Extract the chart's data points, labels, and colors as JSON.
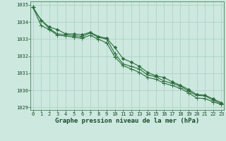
{
  "title": "Graphe pression niveau de la mer (hPa)",
  "bg_color": "#cce8df",
  "grid_color": "#aacfc4",
  "line_color": "#2d6e3e",
  "series1": [
    [
      0,
      1034.85
    ],
    [
      1,
      1034.1
    ],
    [
      2,
      1033.7
    ],
    [
      3,
      1033.55
    ],
    [
      4,
      1033.3
    ],
    [
      5,
      1033.3
    ],
    [
      6,
      1033.25
    ],
    [
      7,
      1033.4
    ],
    [
      8,
      1033.15
    ],
    [
      9,
      1033.05
    ],
    [
      10,
      1032.5
    ],
    [
      11,
      1031.85
    ],
    [
      12,
      1031.65
    ],
    [
      13,
      1031.4
    ],
    [
      14,
      1031.05
    ],
    [
      15,
      1030.85
    ],
    [
      16,
      1030.75
    ],
    [
      17,
      1030.5
    ],
    [
      18,
      1030.3
    ],
    [
      19,
      1030.05
    ],
    [
      20,
      1029.75
    ],
    [
      21,
      1029.72
    ],
    [
      22,
      1029.5
    ],
    [
      23,
      1029.28
    ]
  ],
  "series2": [
    [
      0,
      1034.85
    ],
    [
      1,
      1034.1
    ],
    [
      2,
      1033.6
    ],
    [
      3,
      1033.3
    ],
    [
      4,
      1033.25
    ],
    [
      5,
      1033.2
    ],
    [
      6,
      1033.15
    ],
    [
      7,
      1033.35
    ],
    [
      8,
      1033.1
    ],
    [
      9,
      1033.0
    ],
    [
      10,
      1032.15
    ],
    [
      11,
      1031.55
    ],
    [
      12,
      1031.4
    ],
    [
      13,
      1031.25
    ],
    [
      14,
      1030.9
    ],
    [
      15,
      1030.8
    ],
    [
      16,
      1030.55
    ],
    [
      17,
      1030.4
    ],
    [
      18,
      1030.25
    ],
    [
      19,
      1029.95
    ],
    [
      20,
      1029.7
    ],
    [
      21,
      1029.68
    ],
    [
      22,
      1029.42
    ],
    [
      23,
      1029.22
    ]
  ],
  "series3": [
    [
      0,
      1034.85
    ],
    [
      1,
      1033.78
    ],
    [
      2,
      1033.55
    ],
    [
      3,
      1033.22
    ],
    [
      4,
      1033.18
    ],
    [
      5,
      1033.1
    ],
    [
      6,
      1033.05
    ],
    [
      7,
      1033.22
    ],
    [
      8,
      1032.98
    ],
    [
      9,
      1032.78
    ],
    [
      10,
      1031.95
    ],
    [
      11,
      1031.45
    ],
    [
      12,
      1031.25
    ],
    [
      13,
      1031.05
    ],
    [
      14,
      1030.75
    ],
    [
      15,
      1030.65
    ],
    [
      16,
      1030.42
    ],
    [
      17,
      1030.28
    ],
    [
      18,
      1030.12
    ],
    [
      19,
      1029.85
    ],
    [
      20,
      1029.55
    ],
    [
      21,
      1029.52
    ],
    [
      22,
      1029.32
    ],
    [
      23,
      1029.18
    ]
  ],
  "ylim": [
    1028.85,
    1035.2
  ],
  "yticks": [
    1029,
    1030,
    1031,
    1032,
    1033,
    1034,
    1035
  ],
  "xticks": [
    0,
    1,
    2,
    3,
    4,
    5,
    6,
    7,
    8,
    9,
    10,
    11,
    12,
    13,
    14,
    15,
    16,
    17,
    18,
    19,
    20,
    21,
    22,
    23
  ],
  "xlim": [
    -0.3,
    23.3
  ],
  "title_fontsize": 6.5,
  "tick_fontsize": 5.0
}
